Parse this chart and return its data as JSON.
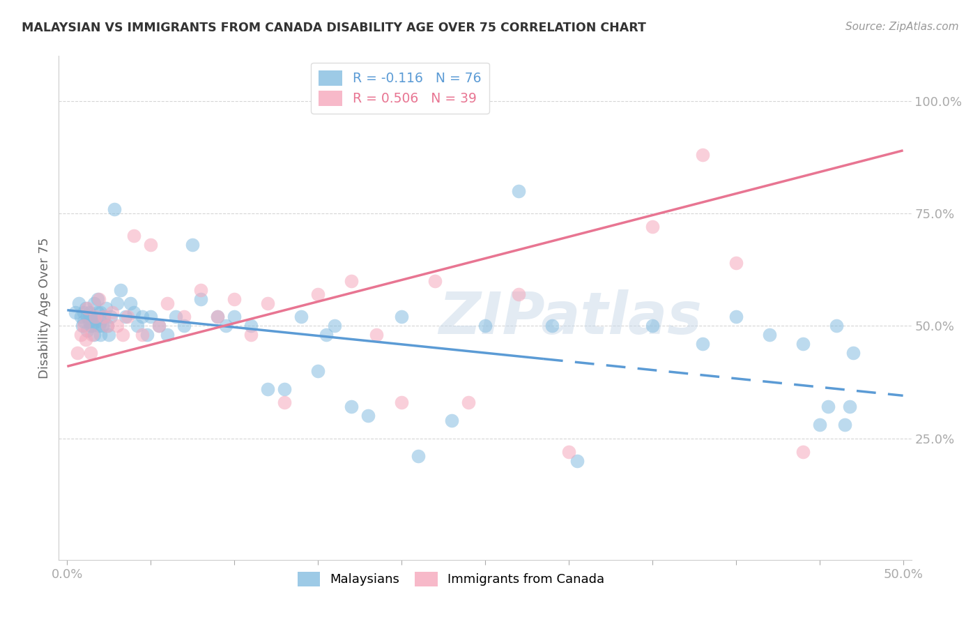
{
  "title": "MALAYSIAN VS IMMIGRANTS FROM CANADA DISABILITY AGE OVER 75 CORRELATION CHART",
  "source": "Source: ZipAtlas.com",
  "ylabel": "Disability Age Over 75",
  "xlim": [
    -0.005,
    0.505
  ],
  "ylim": [
    -0.02,
    1.1
  ],
  "ytick_vals": [
    0.25,
    0.5,
    0.75,
    1.0
  ],
  "ytick_labels": [
    "25.0%",
    "50.0%",
    "75.0%",
    "100.0%"
  ],
  "xtick_vals": [
    0.0,
    0.05,
    0.1,
    0.15,
    0.2,
    0.25,
    0.3,
    0.35,
    0.4,
    0.45,
    0.5
  ],
  "xtick_label_vals": [
    0.0,
    0.5
  ],
  "xtick_label_texts": [
    "0.0%",
    "50.0%"
  ],
  "legend_label1": "Malaysians",
  "legend_label2": "Immigrants from Canada",
  "watermark_text": "ZIPatlas",
  "blue_color": "#85bde0",
  "pink_color": "#f5a8bc",
  "blue_line_color": "#5b9bd5",
  "pink_line_color": "#e87592",
  "blue_line_solid_end_x": 0.285,
  "blue_line_dash_end_x": 0.5,
  "blue_intercept": 0.535,
  "blue_slope": -0.38,
  "pink_intercept": 0.41,
  "pink_slope": 0.96,
  "blue_x": [
    0.005,
    0.007,
    0.008,
    0.009,
    0.01,
    0.01,
    0.011,
    0.012,
    0.012,
    0.013,
    0.013,
    0.014,
    0.014,
    0.015,
    0.015,
    0.016,
    0.016,
    0.017,
    0.018,
    0.018,
    0.019,
    0.02,
    0.02,
    0.02,
    0.021,
    0.022,
    0.023,
    0.024,
    0.025,
    0.026,
    0.028,
    0.03,
    0.032,
    0.035,
    0.038,
    0.04,
    0.042,
    0.045,
    0.048,
    0.05,
    0.055,
    0.06,
    0.065,
    0.07,
    0.075,
    0.08,
    0.09,
    0.095,
    0.1,
    0.11,
    0.12,
    0.13,
    0.14,
    0.15,
    0.155,
    0.16,
    0.17,
    0.18,
    0.2,
    0.21,
    0.23,
    0.25,
    0.27,
    0.29,
    0.305,
    0.35,
    0.38,
    0.4,
    0.42,
    0.44,
    0.45,
    0.455,
    0.46,
    0.465,
    0.468,
    0.47
  ],
  "blue_y": [
    0.53,
    0.55,
    0.52,
    0.5,
    0.51,
    0.53,
    0.54,
    0.49,
    0.52,
    0.51,
    0.53,
    0.5,
    0.52,
    0.5,
    0.52,
    0.55,
    0.48,
    0.51,
    0.53,
    0.56,
    0.5,
    0.48,
    0.51,
    0.53,
    0.5,
    0.52,
    0.54,
    0.5,
    0.48,
    0.52,
    0.76,
    0.55,
    0.58,
    0.52,
    0.55,
    0.53,
    0.5,
    0.52,
    0.48,
    0.52,
    0.5,
    0.48,
    0.52,
    0.5,
    0.68,
    0.56,
    0.52,
    0.5,
    0.52,
    0.5,
    0.36,
    0.36,
    0.52,
    0.4,
    0.48,
    0.5,
    0.32,
    0.3,
    0.52,
    0.21,
    0.29,
    0.5,
    0.8,
    0.5,
    0.2,
    0.5,
    0.46,
    0.52,
    0.48,
    0.46,
    0.28,
    0.32,
    0.5,
    0.28,
    0.32,
    0.44
  ],
  "pink_x": [
    0.006,
    0.008,
    0.01,
    0.011,
    0.012,
    0.014,
    0.015,
    0.017,
    0.019,
    0.022,
    0.024,
    0.027,
    0.03,
    0.033,
    0.036,
    0.04,
    0.045,
    0.05,
    0.055,
    0.06,
    0.07,
    0.08,
    0.09,
    0.1,
    0.11,
    0.12,
    0.13,
    0.15,
    0.17,
    0.185,
    0.2,
    0.22,
    0.24,
    0.27,
    0.3,
    0.35,
    0.38,
    0.4,
    0.44
  ],
  "pink_y": [
    0.44,
    0.48,
    0.5,
    0.47,
    0.54,
    0.44,
    0.48,
    0.52,
    0.56,
    0.52,
    0.5,
    0.53,
    0.5,
    0.48,
    0.52,
    0.7,
    0.48,
    0.68,
    0.5,
    0.55,
    0.52,
    0.58,
    0.52,
    0.56,
    0.48,
    0.55,
    0.33,
    0.57,
    0.6,
    0.48,
    0.33,
    0.6,
    0.33,
    0.57,
    0.22,
    0.72,
    0.88,
    0.64,
    0.22
  ]
}
